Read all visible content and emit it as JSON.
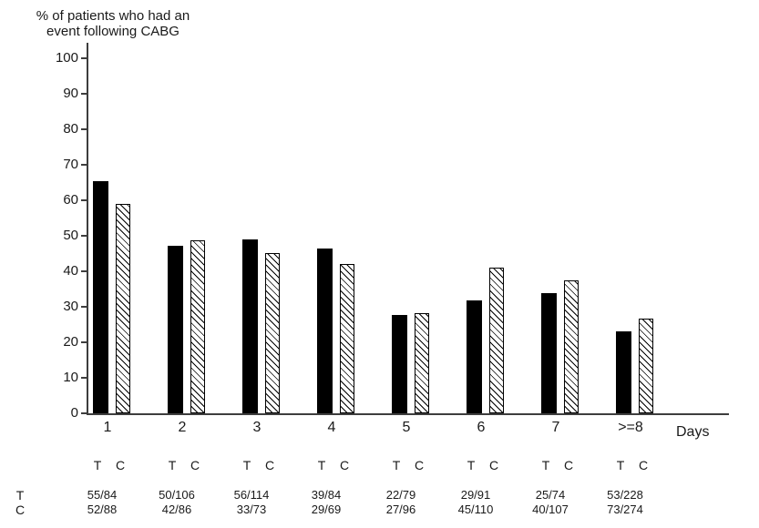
{
  "title": {
    "line1": "% of patients who had an",
    "line2": "event following CABG"
  },
  "x_axis_label": "Days",
  "chart_data": {
    "type": "bar",
    "title": "% of patients who had an event following CABG",
    "ylabel": "% of patients who had an event following CABG",
    "xlabel": "Days",
    "ylim": [
      0,
      100
    ],
    "y_ticks": [
      0,
      10,
      20,
      30,
      40,
      50,
      60,
      70,
      80,
      90,
      100
    ],
    "grid": false,
    "legend_position": "none",
    "categories": [
      "1",
      "2",
      "3",
      "4",
      "5",
      "6",
      "7",
      ">=8"
    ],
    "series": [
      {
        "name": "T",
        "style": "solid",
        "values": [
          65.5,
          47.2,
          49.1,
          46.4,
          27.8,
          31.9,
          33.8,
          23.2
        ],
        "fractions": [
          "55/84",
          "50/106",
          "56/114",
          "39/84",
          "22/79",
          "29/91",
          "25/74",
          "53/228"
        ]
      },
      {
        "name": "C",
        "style": "hatched-backslash",
        "values": [
          59.1,
          48.8,
          45.2,
          42.0,
          28.1,
          40.9,
          37.4,
          26.6
        ],
        "fractions": [
          "52/88",
          "42/86",
          "33/73",
          "29/69",
          "27/96",
          "45/110",
          "40/107",
          "73/274"
        ]
      }
    ]
  },
  "table": {
    "pair_header": [
      "T",
      "C"
    ],
    "row_labels": [
      "T",
      "C"
    ]
  },
  "colors": {
    "bar_fill": "#000000",
    "hatch_line": "#000000",
    "axis": "#3d3d3d",
    "text": "#1a1a1a",
    "background": "#ffffff"
  }
}
